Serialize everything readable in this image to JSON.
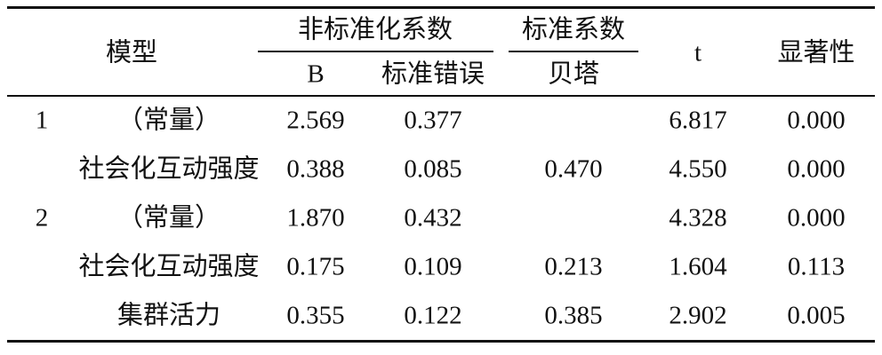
{
  "table": {
    "header": {
      "model": "模型",
      "unstd": "非标准化系数",
      "std": "标准系数",
      "t": "t",
      "sig": "显著性",
      "b": "B",
      "se": "标准错误",
      "beta": "贝塔"
    },
    "models": [
      {
        "label": "1",
        "rows": [
          {
            "name": "（常量）",
            "b": "2.569",
            "se": "0.377",
            "t": "6.817",
            "sig": "0.000"
          },
          {
            "name": "社会化互动强度",
            "b": "0.388",
            "se": "0.085",
            "beta": "0.470",
            "t": "4.550",
            "sig": "0.000"
          }
        ]
      },
      {
        "label": "2",
        "rows": [
          {
            "name": "（常量）",
            "b": "1.870",
            "se": "0.432",
            "t": "4.328",
            "sig": "0.000"
          },
          {
            "name": "社会化互动强度",
            "b": "0.175",
            "se": "0.109",
            "beta": "0.213",
            "t": "1.604",
            "sig": "0.113"
          },
          {
            "name": "集群活力",
            "b": "0.355",
            "se": "0.122",
            "beta": "0.385",
            "t": "2.902",
            "sig": "0.005"
          }
        ]
      }
    ]
  }
}
